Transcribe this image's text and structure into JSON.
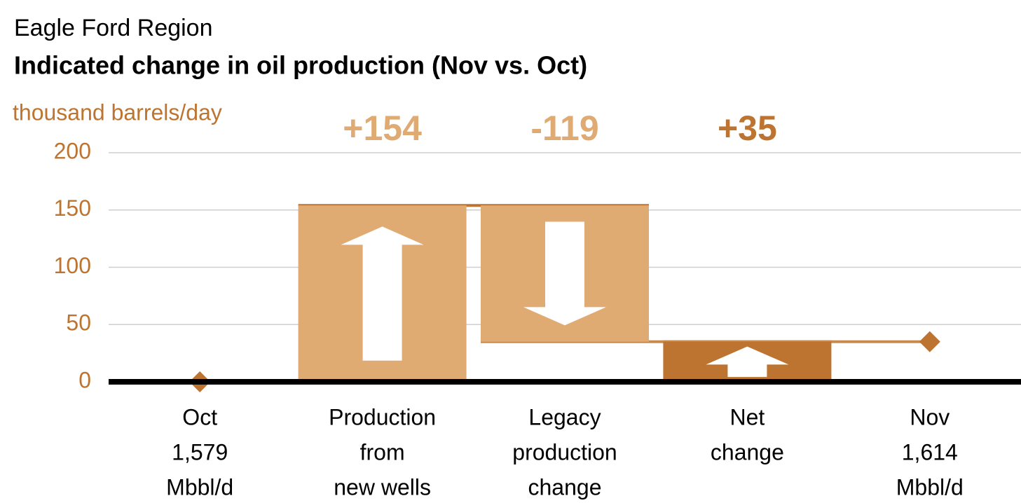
{
  "chart_data": {
    "type": "waterfall",
    "title": "Eagle Ford Region",
    "subtitle": "Indicated change in oil production (Nov vs. Oct)",
    "y_axis_label": "thousand barrels/day",
    "categories": [
      [
        "Oct",
        "1,579",
        "Mbbl/d"
      ],
      [
        "Production",
        "from",
        "new wells"
      ],
      [
        "Legacy",
        "production",
        "change"
      ],
      [
        "Net",
        "change"
      ],
      [
        "Nov",
        "1,614",
        "Mbbl/d"
      ]
    ],
    "values": [
      0,
      154,
      -119,
      35,
      35
    ],
    "value_labels": [
      null,
      "+154",
      "-119",
      "+35",
      null
    ],
    "measures": [
      "absolute",
      "relative",
      "relative",
      "total",
      "total"
    ],
    "color": "#e0aa73",
    "total_color": "#bd7430",
    "ylim": [
      0,
      200
    ],
    "yticks": [
      0,
      50,
      100,
      150,
      200
    ],
    "grid": true
  }
}
